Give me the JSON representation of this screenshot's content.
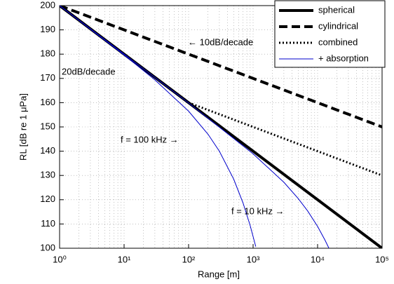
{
  "chart_data": {
    "type": "line",
    "xlabel": "Range [m]",
    "ylabel": "RL [dB re 1 μPa]",
    "xscale": "log",
    "xlim": [
      1,
      100000
    ],
    "ylim": [
      100,
      200
    ],
    "xticks": [
      {
        "value": 1,
        "label": "10⁰"
      },
      {
        "value": 10,
        "label": "10¹"
      },
      {
        "value": 100,
        "label": "10²"
      },
      {
        "value": 1000,
        "label": "10³"
      },
      {
        "value": 10000,
        "label": "10⁴"
      },
      {
        "value": 100000,
        "label": "10⁵"
      }
    ],
    "yticks": [
      100,
      110,
      120,
      130,
      140,
      150,
      160,
      170,
      180,
      190,
      200
    ],
    "grid": true,
    "legend": "upper right",
    "series": [
      {
        "name": "spherical",
        "color": "#000000",
        "style": "solid",
        "width": 4,
        "x": [
          1,
          100000
        ],
        "values": [
          200,
          100
        ]
      },
      {
        "name": "cylindrical",
        "color": "#000000",
        "style": "dashed",
        "width": 4,
        "x": [
          1,
          100000
        ],
        "values": [
          200,
          150
        ]
      },
      {
        "name": "combined",
        "color": "#000000",
        "style": "dotted",
        "width": 3,
        "x": [
          100,
          100000
        ],
        "values": [
          160,
          130
        ]
      },
      {
        "name": "+ absorption",
        "color": "#0000cc",
        "style": "solid",
        "width": 1,
        "x": [
          1,
          10,
          30,
          100,
          200,
          300,
          500,
          700,
          900,
          1100
        ],
        "values": [
          200,
          179.65,
          169.4,
          156.5,
          147.0,
          140.0,
          128.5,
          118.6,
          109.4,
          100.7
        ]
      },
      {
        "color": "#0000cc",
        "style": "solid",
        "width": 1,
        "x": [
          1,
          10,
          100,
          1000,
          3000,
          5000,
          7000,
          10000,
          13000,
          15000
        ],
        "values": [
          200,
          180,
          159.9,
          138.9,
          127.2,
          120.5,
          115.4,
          109,
          103.4,
          100.0
        ]
      }
    ],
    "annotations": [
      "← 10dB/decade",
      "20dB/decade",
      "f = 100 kHz →",
      "f = 10 kHz →"
    ]
  }
}
